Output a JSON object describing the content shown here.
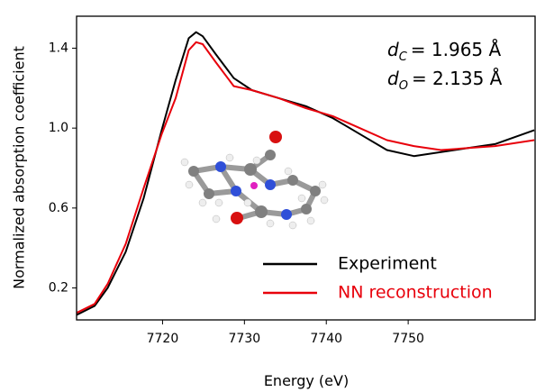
{
  "chart_data": {
    "type": "line",
    "xlabel": "Energy (eV)",
    "ylabel": "Normalized absorption coefficient",
    "xlim": [
      7709.5,
      7765.5
    ],
    "ylim": [
      0.04,
      1.56
    ],
    "xticks": [
      7720,
      7730,
      7740,
      7750
    ],
    "yticks": [
      0.2,
      0.6,
      {
        "value": 1,
        "label": "1.0"
      },
      1.4
    ],
    "grid": false,
    "legend": "lower right",
    "annotations": [
      {
        "symbol": "d",
        "subscript": "C",
        "text": "= 1.965 Å"
      },
      {
        "symbol": "d",
        "subscript": "O",
        "text": "= 2.135 Å"
      }
    ],
    "x": [
      7709.5,
      7711.7,
      7713.3,
      7715.5,
      7717.7,
      7719.9,
      7721.6,
      7723.2,
      7724.1,
      7724.9,
      7726.5,
      7728.7,
      7730.9,
      7734.2,
      7737.5,
      7740.8,
      7744.1,
      7747.4,
      7750.7,
      7754.0,
      7757.3,
      7760.6,
      7765.4
    ],
    "series": [
      {
        "name": "Experiment",
        "color": "#000000",
        "values": [
          0.065,
          0.11,
          0.2,
          0.38,
          0.65,
          0.99,
          1.24,
          1.45,
          1.48,
          1.46,
          1.37,
          1.25,
          1.19,
          1.15,
          1.11,
          1.05,
          0.97,
          0.89,
          0.86,
          0.88,
          0.9,
          0.92,
          0.99
        ]
      },
      {
        "name": "NN reconstruction",
        "color": "#e8000b",
        "values": [
          0.075,
          0.12,
          0.22,
          0.42,
          0.7,
          0.97,
          1.15,
          1.39,
          1.43,
          1.42,
          1.33,
          1.21,
          1.19,
          1.15,
          1.1,
          1.06,
          1.0,
          0.94,
          0.91,
          0.89,
          0.9,
          0.91,
          0.94
        ]
      }
    ]
  }
}
